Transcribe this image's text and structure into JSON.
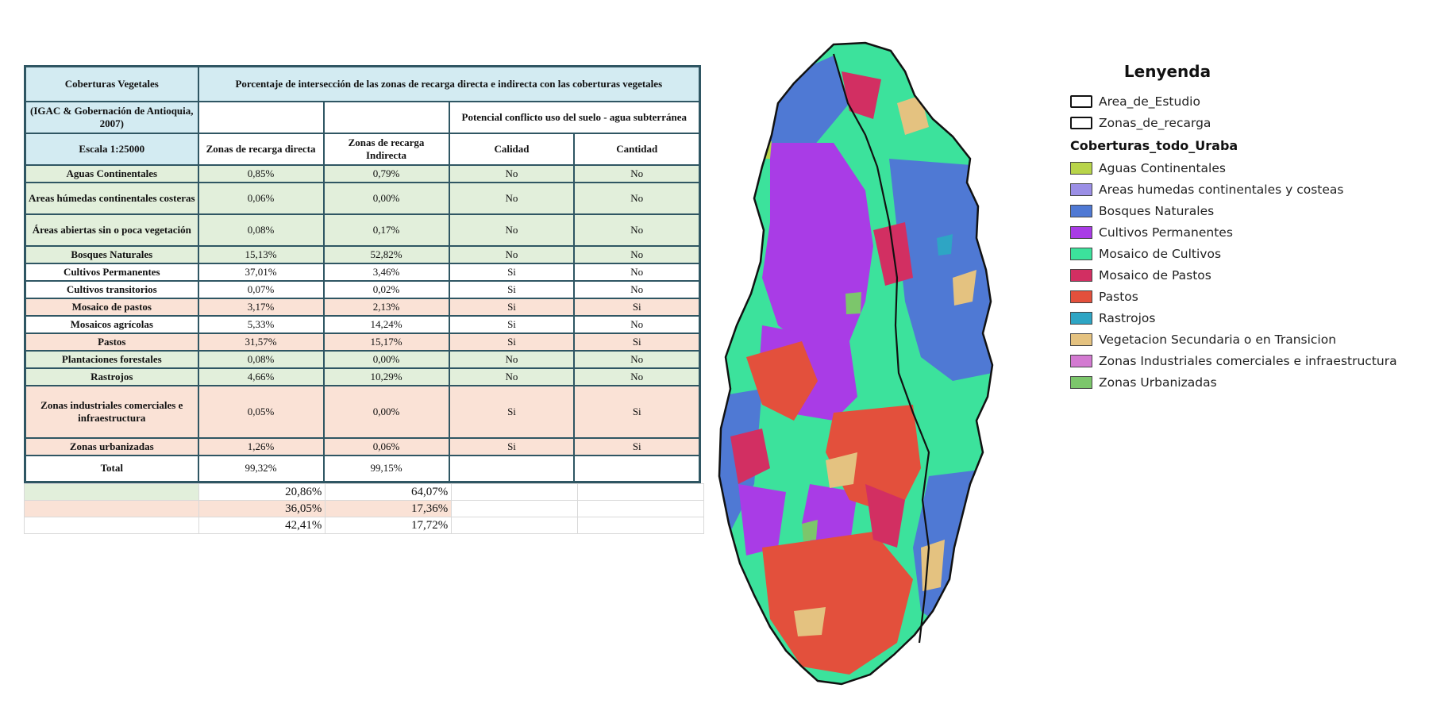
{
  "table": {
    "header": {
      "col0_row1": "Coberturas Vegetales",
      "title": "Porcentaje de intersección de las zonas de recarga directa e indirecta con las coberturas vegetales",
      "col0_row2": "(IGAC & Gobernación de Antioquia, 2007)",
      "conflict": "Potencial conflicto uso del suelo - agua subterránea",
      "col0_row3": "Escala 1:25000",
      "directa": "Zonas de recarga directa",
      "indirecta": "Zonas de recarga Indirecta",
      "calidad": "Calidad",
      "cantidad": "Cantidad"
    },
    "rows": [
      {
        "name": "Aguas Continentales",
        "directa": "0,85%",
        "indirecta": "0,79%",
        "calidad": "No",
        "cantidad": "No",
        "color": "#e2efdb"
      },
      {
        "name": "Areas húmedas continentales costeras",
        "directa": "0,06%",
        "indirecta": "0,00%",
        "calidad": "No",
        "cantidad": "No",
        "color": "#e2efdb"
      },
      {
        "name": "Áreas abiertas sin o poca vegetación",
        "directa": "0,08%",
        "indirecta": "0,17%",
        "calidad": "No",
        "cantidad": "No",
        "color": "#e2efdb"
      },
      {
        "name": "Bosques Naturales",
        "directa": "15,13%",
        "indirecta": "52,82%",
        "calidad": "No",
        "cantidad": "No",
        "color": "#e2efdb"
      },
      {
        "name": "Cultivos Permanentes",
        "directa": "37,01%",
        "indirecta": "3,46%",
        "calidad": "Si",
        "cantidad": "No",
        "color": "#ffffff"
      },
      {
        "name": "Cultivos transitorios",
        "directa": "0,07%",
        "indirecta": "0,02%",
        "calidad": "Si",
        "cantidad": "No",
        "color": "#ffffff"
      },
      {
        "name": "Mosaico de pastos",
        "directa": "3,17%",
        "indirecta": "2,13%",
        "calidad": "Si",
        "cantidad": "Si",
        "color": "#fae2d6"
      },
      {
        "name": "Mosaicos agrícolas",
        "directa": "5,33%",
        "indirecta": "14,24%",
        "calidad": "Si",
        "cantidad": "No",
        "color": "#ffffff"
      },
      {
        "name": "Pastos",
        "directa": "31,57%",
        "indirecta": "15,17%",
        "calidad": "Si",
        "cantidad": "Si",
        "color": "#fae2d6"
      },
      {
        "name": "Plantaciones forestales",
        "directa": "0,08%",
        "indirecta": "0,00%",
        "calidad": "No",
        "cantidad": "No",
        "color": "#e2efdb"
      },
      {
        "name": "Rastrojos",
        "directa": "4,66%",
        "indirecta": "10,29%",
        "calidad": "No",
        "cantidad": "No",
        "color": "#e2efdb"
      },
      {
        "name": "Zonas industriales comerciales e infraestructura",
        "directa": "0,05%",
        "indirecta": "0,00%",
        "calidad": "Si",
        "cantidad": "Si",
        "color": "#fae2d6"
      },
      {
        "name": "Zonas urbanizadas",
        "directa": "1,26%",
        "indirecta": "0,06%",
        "calidad": "Si",
        "cantidad": "Si",
        "color": "#fae2d6"
      }
    ],
    "total": {
      "name": "Total",
      "directa": "99,32%",
      "indirecta": "99,15%"
    },
    "extra_rows": [
      {
        "directa": "20,86%",
        "indirecta": "64,07%",
        "color": "#e2efdb"
      },
      {
        "directa": "36,05%",
        "indirecta": "17,36%",
        "color": "#fae2d6"
      },
      {
        "directa": "42,41%",
        "indirecta": "17,72%",
        "color": "#ffffff"
      }
    ]
  },
  "legend": {
    "title": "Lenyenda",
    "layers": [
      "Area_de_Estudio",
      "Zonas_de_recarga"
    ],
    "group": "Coberturas_todo_Uraba",
    "items": [
      {
        "label": "Aguas Continentales",
        "color": "#b8d44a"
      },
      {
        "label": "Areas humedas continentales y costeas",
        "color": "#9b8fe6"
      },
      {
        "label": "Bosques Naturales",
        "color": "#4f79d4"
      },
      {
        "label": "Cultivos Permanentes",
        "color": "#a93ce6"
      },
      {
        "label": "Mosaico de Cultivos",
        "color": "#3ce29c"
      },
      {
        "label": "Mosaico de Pastos",
        "color": "#d22f62"
      },
      {
        "label": "Pastos",
        "color": "#e3503c"
      },
      {
        "label": "Rastrojos",
        "color": "#2ea5c4"
      },
      {
        "label": "Vegetacion Secundaria o en Transicion",
        "color": "#e4c280"
      },
      {
        "label": "Zonas Industriales comerciales e infraestructura",
        "color": "#d37ad1"
      },
      {
        "label": "Zonas Urbanizadas",
        "color": "#7cc66b"
      }
    ]
  }
}
